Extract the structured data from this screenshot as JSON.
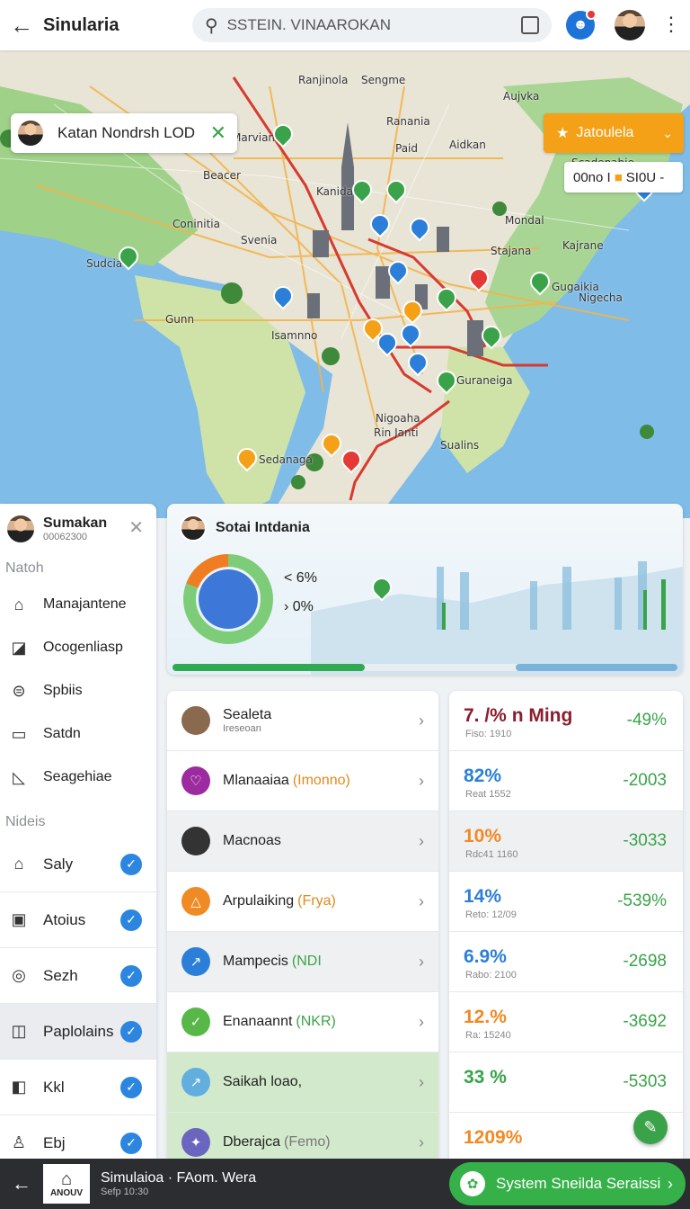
{
  "header": {
    "app_title": "Sinularia",
    "search_placeholder": "SSTEIN. VINAAROKAN"
  },
  "map": {
    "chip_label": "Katan Nondrsh LOD",
    "filter_button": "Jatoulela",
    "selector_text": "00no I",
    "selector_value": "SI0U -",
    "labels": [
      {
        "text": "Ranjinola",
        "cls": "l1"
      },
      {
        "text": "Sengme",
        "cls": "l2"
      },
      {
        "text": "Aujvka",
        "cls": "l3"
      },
      {
        "text": "Ranania",
        "cls": "l4"
      },
      {
        "text": "Marvian",
        "cls": "l5"
      },
      {
        "text": "Paid",
        "cls": "l6"
      },
      {
        "text": "Aidkan",
        "cls": "l7"
      },
      {
        "text": "Scadenahie",
        "cls": "l8"
      },
      {
        "text": "Beacer",
        "cls": "l9"
      },
      {
        "text": "Kanida",
        "cls": "l10"
      },
      {
        "text": "Coninitia",
        "cls": "l11"
      },
      {
        "text": "Mondal",
        "cls": "l12"
      },
      {
        "text": "Svenia",
        "cls": "l13"
      },
      {
        "text": "Kajrane",
        "cls": "l14"
      },
      {
        "text": "Sudcia",
        "cls": "l15"
      },
      {
        "text": "Stajana",
        "cls": "l16"
      },
      {
        "text": "Gugaikia",
        "cls": "l17"
      },
      {
        "text": "Nigecha",
        "cls": "l18"
      },
      {
        "text": "Gunn",
        "cls": "l19"
      },
      {
        "text": "Isamnno",
        "cls": "l20"
      },
      {
        "text": "Guraneiga",
        "cls": "l21"
      },
      {
        "text": "Nigoaha",
        "cls": "l22"
      },
      {
        "text": "Rin Janti",
        "cls": "l23"
      },
      {
        "text": "Sualins",
        "cls": "l24"
      },
      {
        "text": "Sedanaga",
        "cls": "l25"
      }
    ]
  },
  "sidebar": {
    "user_name": "Sumakan",
    "user_id": "00062300",
    "section1": "Natoh",
    "nav": [
      {
        "label": "Manajantene",
        "icon": "⌂"
      },
      {
        "label": "Ocogenliasp",
        "icon": "◪"
      },
      {
        "label": "Spbiis",
        "icon": "⊜"
      },
      {
        "label": "Satdn",
        "icon": "▭"
      },
      {
        "label": "Seagehiae",
        "icon": "◺"
      }
    ],
    "section2": "Nideis",
    "checks": [
      {
        "label": "Saly",
        "icon": "⌂"
      },
      {
        "label": "Atoius",
        "icon": "▣"
      },
      {
        "label": "Sezh",
        "icon": "◎"
      },
      {
        "label": "Paplolains",
        "icon": "◫"
      },
      {
        "label": "Kkl",
        "icon": "◧"
      },
      {
        "label": "Ebj",
        "icon": "♙"
      }
    ]
  },
  "summary": {
    "title": "Sotai Intdania",
    "legend1": "< 6%",
    "legend2": "› 0%",
    "progress": 0.38
  },
  "list": [
    {
      "name": "Sealeta",
      "sub": "Ireseoan",
      "tag": "",
      "tag_color": "#222",
      "icon_bg": "#8a6a4e",
      "icon": "",
      "row_cls": ""
    },
    {
      "name": "Mlanaaiaa",
      "sub": "",
      "tag": "(Imonno)",
      "tag_color": "#e08a1e",
      "icon_bg": "#9b2b9f",
      "icon": "♡",
      "row_cls": ""
    },
    {
      "name": "Macnoas",
      "sub": "",
      "tag": "",
      "tag_color": "#222",
      "icon_bg": "#333",
      "icon": "",
      "row_cls": "grey"
    },
    {
      "name": "Arpulaiking",
      "sub": "",
      "tag": "(Frya)",
      "tag_color": "#e08a1e",
      "icon_bg": "#f08a24",
      "icon": "△",
      "row_cls": ""
    },
    {
      "name": "Mampecis",
      "sub": "",
      "tag": "(NDI",
      "tag_color": "#3aa34a",
      "icon_bg": "#2c7fd8",
      "icon": "↗",
      "row_cls": "grey"
    },
    {
      "name": "Enanaannt",
      "sub": "",
      "tag": "(NKR)",
      "tag_color": "#3aa34a",
      "icon_bg": "#58b847",
      "icon": "✓",
      "row_cls": ""
    },
    {
      "name": "Saikah loao,",
      "sub": "",
      "tag": "",
      "tag_color": "#222",
      "icon_bg": "#62aedf",
      "icon": "↗",
      "row_cls": "green"
    },
    {
      "name": "Dberajca",
      "sub": "",
      "tag": "(Femo)",
      "tag_color": "#777",
      "icon_bg": "#6a66c0",
      "icon": "✦",
      "row_cls": "green"
    }
  ],
  "stats": [
    {
      "value": "7. /% n Ming",
      "sub": "Fiso: 1910",
      "delta": "-49%",
      "color": "#8b1e2e",
      "row_cls": ""
    },
    {
      "value": "82%",
      "sub": "Reat 1552",
      "delta": "-2003",
      "color": "#2c7fd8",
      "row_cls": ""
    },
    {
      "value": "10%",
      "sub": "Rdc41 1160",
      "delta": "-3033",
      "color": "#f08a24",
      "row_cls": "grey"
    },
    {
      "value": "14%",
      "sub": "Reto: 12/09",
      "delta": "-539%",
      "color": "#2c7fd8",
      "row_cls": ""
    },
    {
      "value": "6.9%",
      "sub": "Rabo: 2100",
      "delta": "-2698",
      "color": "#2c7fd8",
      "row_cls": ""
    },
    {
      "value": "12.%",
      "sub": "Ra: 15240",
      "delta": "-3692",
      "color": "#f08a24",
      "row_cls": ""
    },
    {
      "value": "33 %",
      "sub": "",
      "delta": "-5303",
      "color": "#3aa34a",
      "row_cls": ""
    },
    {
      "value": "1209%",
      "sub": "",
      "delta": "",
      "color": "#f08a24",
      "row_cls": ""
    }
  ],
  "bottom": {
    "logo_text": "ANOUV",
    "title": "Simulaioa · FAom. Wera",
    "subtitle": "Sefp 10:30",
    "action": "System Sneilda Seraissi"
  }
}
